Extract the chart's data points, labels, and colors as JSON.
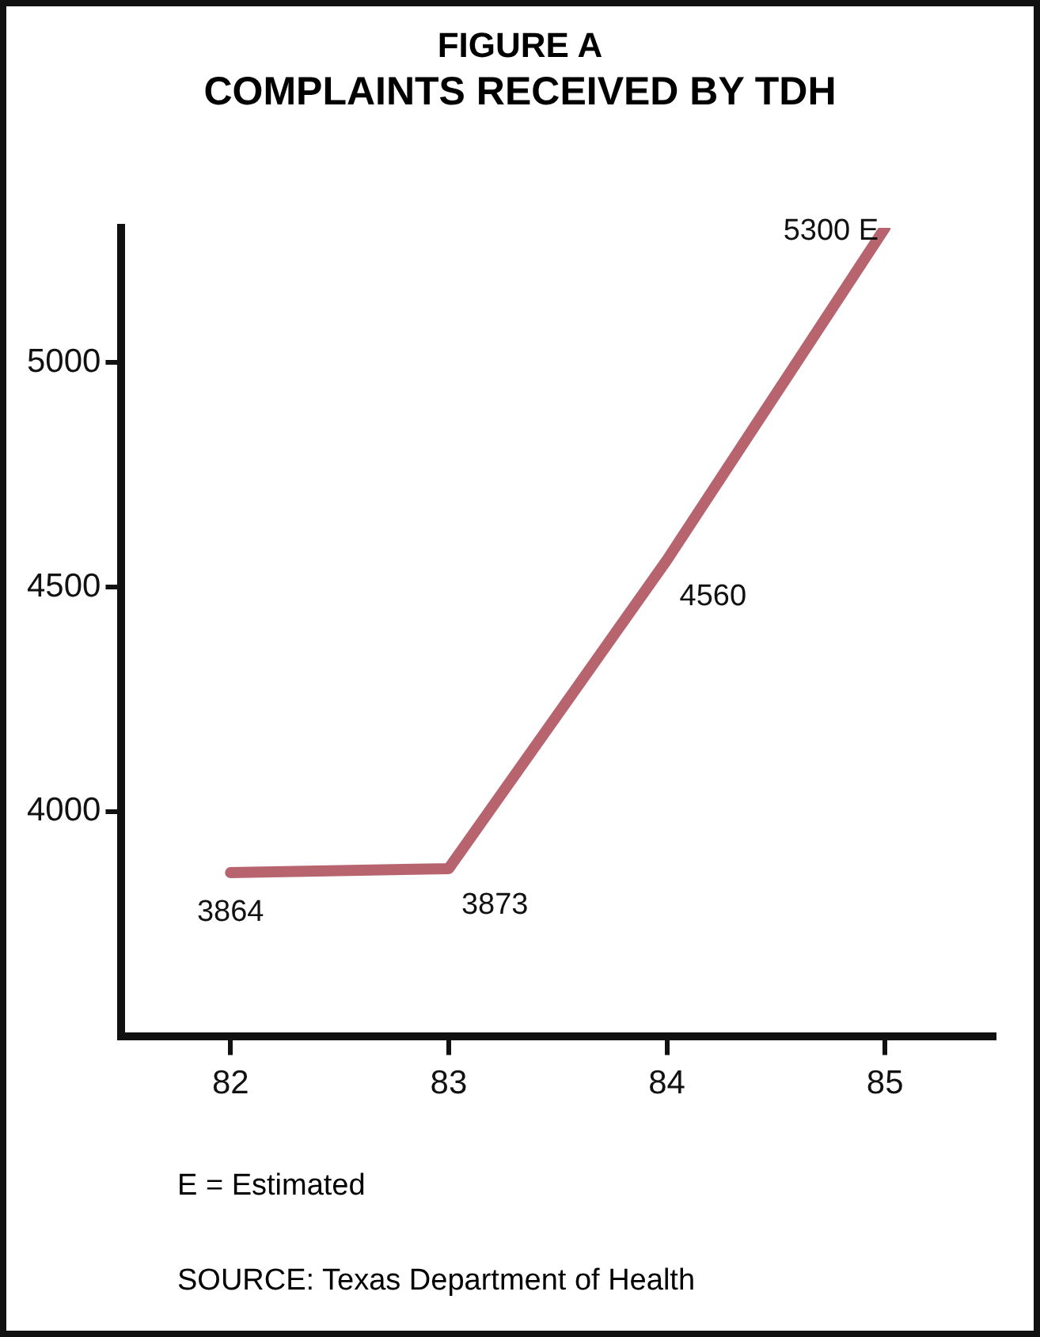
{
  "chart_data": {
    "type": "line",
    "title": "FIGURE A",
    "subtitle": "COMPLAINTS RECEIVED BY TDH",
    "categories": [
      "82",
      "83",
      "84",
      "85"
    ],
    "series": [
      {
        "color": "#b8646f",
        "values": [
          3864,
          3873,
          4560,
          5300
        ],
        "value_labels": [
          "3864",
          "3873",
          "4560",
          "5300 E"
        ]
      }
    ],
    "ylim": [
      3500,
      5300
    ],
    "yticks": [
      4000,
      4500,
      5000
    ],
    "grid": false,
    "legend": false,
    "marker": "none",
    "line_style": "solid",
    "annotations": [
      "E = Estimated",
      "SOURCE: Texas Department of Health"
    ]
  }
}
